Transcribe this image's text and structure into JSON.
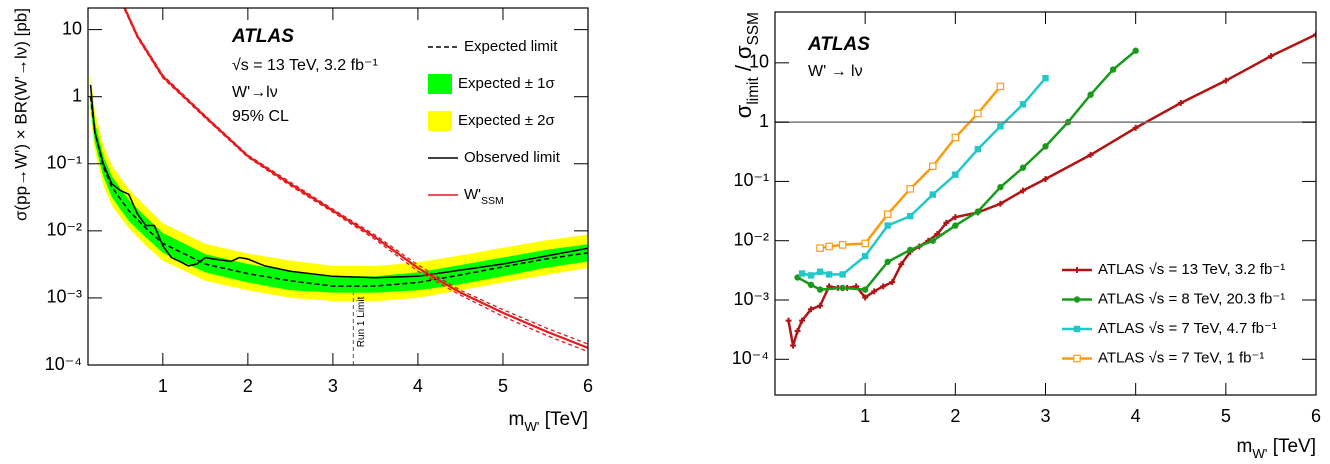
{
  "chart_data": [
    {
      "type": "line",
      "annotations": [
        "ATLAS",
        "√s = 13 TeV, 3.2 fb⁻¹",
        "W'→lν",
        "95% CL"
      ],
      "xlabel": [
        "m",
        "W'",
        " [TeV]"
      ],
      "ylabel": "σ(pp→W') × BR(W'→lν) [pb]",
      "xlim": [
        0.12,
        6
      ],
      "ylim": [
        0.0001,
        21
      ],
      "log_y": true,
      "xticks": [
        1,
        2,
        3,
        4,
        5,
        6
      ],
      "yticks": [
        {
          "value": 0.0001,
          "label": "10⁻⁴"
        },
        {
          "value": 0.001,
          "label": "10⁻³"
        },
        {
          "value": 0.01,
          "label": "10⁻²"
        },
        {
          "value": 0.1,
          "label": "10⁻¹"
        },
        1,
        10
      ],
      "reference_line": {
        "x": 3.24,
        "ymax": 0.0012,
        "label": "Run 1 Limit"
      },
      "series": [
        {
          "name": "Expected limit",
          "kind": "line",
          "style": "dashed",
          "color": "#000000",
          "x": [
            0.15,
            0.2,
            0.3,
            0.4,
            0.5,
            0.6,
            0.8,
            1.0,
            1.5,
            2.0,
            2.5,
            3.0,
            3.5,
            4.0,
            4.5,
            5.0,
            5.5,
            6.0
          ],
          "values": [
            1.0,
            0.3,
            0.09,
            0.045,
            0.03,
            0.02,
            0.011,
            0.0065,
            0.0032,
            0.0023,
            0.0018,
            0.0015,
            0.0015,
            0.0017,
            0.0022,
            0.0029,
            0.0038,
            0.0047
          ]
        },
        {
          "name": "Expected ± 1σ",
          "kind": "band",
          "color": "#00ff00",
          "x": [
            0.15,
            0.2,
            0.3,
            0.4,
            0.5,
            0.6,
            0.8,
            1.0,
            1.5,
            2.0,
            2.5,
            3.0,
            3.5,
            4.0,
            4.5,
            5.0,
            5.5,
            6.0
          ],
          "lower": [
            0.7,
            0.21,
            0.065,
            0.032,
            0.021,
            0.014,
            0.008,
            0.0047,
            0.0024,
            0.0017,
            0.0013,
            0.0012,
            0.0012,
            0.0013,
            0.0016,
            0.0021,
            0.0028,
            0.0035
          ],
          "upper": [
            1.5,
            0.43,
            0.13,
            0.065,
            0.043,
            0.029,
            0.016,
            0.0093,
            0.0045,
            0.0032,
            0.0025,
            0.0021,
            0.0021,
            0.0024,
            0.0031,
            0.004,
            0.0052,
            0.0063
          ]
        },
        {
          "name": "Expected ± 2σ",
          "kind": "band",
          "color": "#ffff00",
          "x": [
            0.15,
            0.2,
            0.3,
            0.4,
            0.5,
            0.6,
            0.8,
            1.0,
            1.5,
            2.0,
            2.5,
            3.0,
            3.5,
            4.0,
            4.5,
            5.0,
            5.5,
            6.0
          ],
          "lower": [
            0.5,
            0.16,
            0.048,
            0.024,
            0.016,
            0.011,
            0.006,
            0.0036,
            0.0018,
            0.0013,
            0.001,
            0.0009,
            0.0009,
            0.001,
            0.0013,
            0.0017,
            0.0022,
            0.0028
          ],
          "upper": [
            2.2,
            0.62,
            0.19,
            0.095,
            0.063,
            0.042,
            0.023,
            0.013,
            0.0064,
            0.0046,
            0.0036,
            0.003,
            0.003,
            0.0034,
            0.0043,
            0.0056,
            0.0072,
            0.0088
          ]
        },
        {
          "name": "Observed limit",
          "kind": "line",
          "style": "solid",
          "color": "#000000",
          "x": [
            0.15,
            0.2,
            0.3,
            0.4,
            0.5,
            0.6,
            0.7,
            0.8,
            0.9,
            1.0,
            1.1,
            1.2,
            1.3,
            1.4,
            1.5,
            1.6,
            1.8,
            1.9,
            2.0,
            2.2,
            2.5,
            3.0,
            3.5,
            4.0,
            4.5,
            5.0,
            5.5,
            6.0
          ],
          "values": [
            1.5,
            0.3,
            0.1,
            0.05,
            0.04,
            0.035,
            0.018,
            0.012,
            0.012,
            0.006,
            0.004,
            0.0035,
            0.003,
            0.0032,
            0.004,
            0.0038,
            0.0035,
            0.004,
            0.0038,
            0.003,
            0.0025,
            0.0021,
            0.002,
            0.0021,
            0.0026,
            0.0032,
            0.0042,
            0.0055
          ]
        },
        {
          "name": [
            "W'",
            "SSM"
          ],
          "kind": "line",
          "style": "solid",
          "color": "#e41a1c",
          "x": [
            0.55,
            0.7,
            1.0,
            1.5,
            2.0,
            2.5,
            3.0,
            3.5,
            4.0,
            4.5,
            5.0,
            5.5,
            6.0
          ],
          "values": [
            21,
            8,
            2.0,
            0.5,
            0.13,
            0.05,
            0.02,
            0.008,
            0.0028,
            0.0012,
            0.0006,
            0.00032,
            0.00018
          ],
          "upper": [
            22,
            8.4,
            2.1,
            0.52,
            0.135,
            0.053,
            0.021,
            0.0086,
            0.0031,
            0.0013,
            0.00067,
            0.00036,
            0.000205
          ],
          "lower": [
            20,
            7.6,
            1.9,
            0.48,
            0.125,
            0.047,
            0.019,
            0.0074,
            0.0025,
            0.0011,
            0.00053,
            0.00028,
            0.000158
          ]
        }
      ]
    },
    {
      "type": "line",
      "annotations": [
        "ATLAS",
        "W' → lν"
      ],
      "xlabel": [
        "m",
        "W'",
        " [TeV]"
      ],
      "ylabel": [
        "σ",
        "limit",
        " / σ",
        "SSM"
      ],
      "xlim": [
        0,
        6
      ],
      "ylim": [
        2.5e-05,
        72
      ],
      "log_y": true,
      "xticks": [
        1,
        2,
        3,
        4,
        5,
        6
      ],
      "yticks": [
        {
          "value": 0.0001,
          "label": "10⁻⁴"
        },
        {
          "value": 0.001,
          "label": "10⁻³"
        },
        {
          "value": 0.01,
          "label": "10⁻²"
        },
        {
          "value": 0.1,
          "label": "10⁻¹"
        },
        1,
        10
      ],
      "hline": 1,
      "legend": "lower right",
      "series": [
        {
          "name": "ATLAS √s = 13 TeV, 3.2 fb⁻¹",
          "color": "#b01414",
          "marker": "plus",
          "x": [
            0.15,
            0.2,
            0.25,
            0.3,
            0.4,
            0.5,
            0.6,
            0.7,
            0.8,
            0.9,
            1.0,
            1.1,
            1.2,
            1.3,
            1.4,
            1.5,
            1.6,
            1.7,
            1.8,
            1.9,
            2.0,
            2.25,
            2.5,
            2.75,
            3.0,
            3.5,
            4.0,
            4.5,
            5.0,
            5.5,
            6.0
          ],
          "values": [
            0.00045,
            0.00017,
            0.0003,
            0.00045,
            0.0007,
            0.0008,
            0.0017,
            0.0016,
            0.0016,
            0.0017,
            0.0011,
            0.0014,
            0.0017,
            0.002,
            0.004,
            0.0065,
            0.008,
            0.01,
            0.013,
            0.02,
            0.025,
            0.03,
            0.042,
            0.07,
            0.11,
            0.28,
            0.8,
            2.1,
            5,
            13,
            30
          ]
        },
        {
          "name": "ATLAS √s = 8 TeV, 20.3 fb⁻¹",
          "color": "#1a9a1a",
          "marker": "circle",
          "x": [
            0.25,
            0.4,
            0.5,
            0.75,
            1.0,
            1.25,
            1.5,
            1.75,
            2.0,
            2.25,
            2.5,
            2.75,
            3.0,
            3.25,
            3.5,
            3.75,
            4.0
          ],
          "values": [
            0.0024,
            0.0018,
            0.0015,
            0.0016,
            0.0015,
            0.0044,
            0.007,
            0.01,
            0.018,
            0.031,
            0.08,
            0.17,
            0.39,
            1.0,
            2.9,
            7.7,
            16
          ]
        },
        {
          "name": "ATLAS √s = 7 TeV, 4.7 fb⁻¹",
          "color": "#22c8c8",
          "marker": "square",
          "x": [
            0.3,
            0.4,
            0.5,
            0.6,
            0.75,
            1.0,
            1.25,
            1.5,
            1.75,
            2.0,
            2.25,
            2.5,
            2.75,
            3.0
          ],
          "values": [
            0.0028,
            0.0026,
            0.003,
            0.0027,
            0.0027,
            0.0055,
            0.018,
            0.026,
            0.06,
            0.13,
            0.35,
            0.85,
            2.0,
            5.5
          ]
        },
        {
          "name": "ATLAS √s = 7 TeV, 1 fb⁻¹",
          "color": "#ff9a10",
          "marker": "open-square",
          "x": [
            0.5,
            0.6,
            0.75,
            1.0,
            1.25,
            1.5,
            1.75,
            2.0,
            2.25,
            2.5
          ],
          "values": [
            0.0075,
            0.008,
            0.0085,
            0.009,
            0.028,
            0.075,
            0.18,
            0.55,
            1.4,
            4
          ]
        }
      ]
    }
  ]
}
